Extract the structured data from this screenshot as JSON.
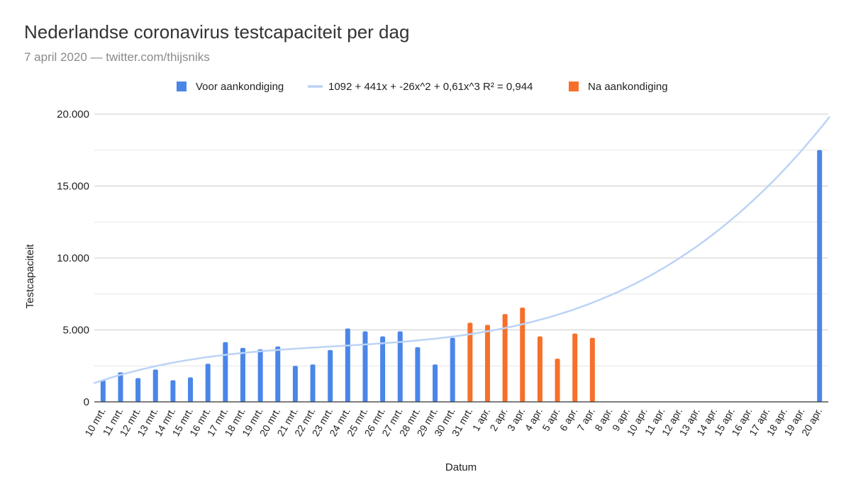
{
  "header": {
    "title": "Nederlandse coronavirus testcapaciteit per dag",
    "subtitle": "7 april 2020 — twitter.com/thijsniks"
  },
  "colors": {
    "voor": "#4a86e8",
    "na": "#f6702b",
    "trend": "#bcd3f6",
    "grid": "#cccccc",
    "minor_grid": "#e6e6e6"
  },
  "chart_data": {
    "type": "bar",
    "title": "Nederlandse coronavirus testcapaciteit per dag",
    "subtitle": "7 april 2020 — twitter.com/thijsniks",
    "xlabel": "Datum",
    "ylabel": "Testcapaciteit",
    "ylim": [
      0,
      20000
    ],
    "yticks": [
      0,
      5000,
      10000,
      15000,
      20000
    ],
    "ytick_labels": [
      "0",
      "5.000",
      "10.000",
      "15.000",
      "20.000"
    ],
    "grid": true,
    "legend_position": "top",
    "categories": [
      "10 mrt.",
      "11 mrt.",
      "12 mrt.",
      "13 mrt.",
      "14 mrt.",
      "15 mrt.",
      "16 mrt.",
      "17 mrt.",
      "18 mrt.",
      "19 mrt.",
      "20 mrt.",
      "21 mrt.",
      "22 mrt.",
      "23 mrt.",
      "24 mrt.",
      "25 mrt.",
      "26 mrt.",
      "27 mrt.",
      "28 mrt.",
      "29 mrt.",
      "30 mrt.",
      "31 mrt.",
      "1 apr.",
      "2 apr.",
      "3 apr.",
      "4 apr.",
      "5 apr.",
      "6 apr.",
      "7 apr.",
      "8 apr.",
      "9 apr.",
      "10 apr.",
      "11 apr.",
      "12 apr.",
      "13 apr.",
      "14 apr.",
      "15 apr.",
      "16 apr.",
      "17 apr.",
      "18 apr.",
      "19 apr.",
      "20 apr."
    ],
    "series": [
      {
        "name": "Voor aankondiging",
        "type": "bar",
        "values": [
          1500,
          2050,
          1650,
          2250,
          1500,
          1700,
          2650,
          4150,
          3750,
          3650,
          3850,
          2500,
          2600,
          3600,
          5100,
          4900,
          4550,
          4900,
          3800,
          2600,
          4450,
          null,
          null,
          null,
          null,
          null,
          null,
          null,
          null,
          null,
          null,
          null,
          null,
          null,
          null,
          null,
          null,
          null,
          null,
          null,
          null,
          17500
        ]
      },
      {
        "name": "Na aankondiging",
        "type": "bar",
        "values": [
          null,
          null,
          null,
          null,
          null,
          null,
          null,
          null,
          null,
          null,
          null,
          null,
          null,
          null,
          null,
          null,
          null,
          null,
          null,
          null,
          null,
          5500,
          5350,
          6100,
          6550,
          4550,
          3000,
          4750,
          4450,
          null,
          null,
          null,
          null,
          null,
          null,
          null,
          null,
          null,
          null,
          null,
          null,
          null
        ]
      },
      {
        "name": "1092 + 441x + -26x^2 + 0,61x^3 R² = 0,944",
        "type": "trendline",
        "coefficients": [
          1092,
          441,
          -26,
          0.61
        ]
      }
    ]
  }
}
